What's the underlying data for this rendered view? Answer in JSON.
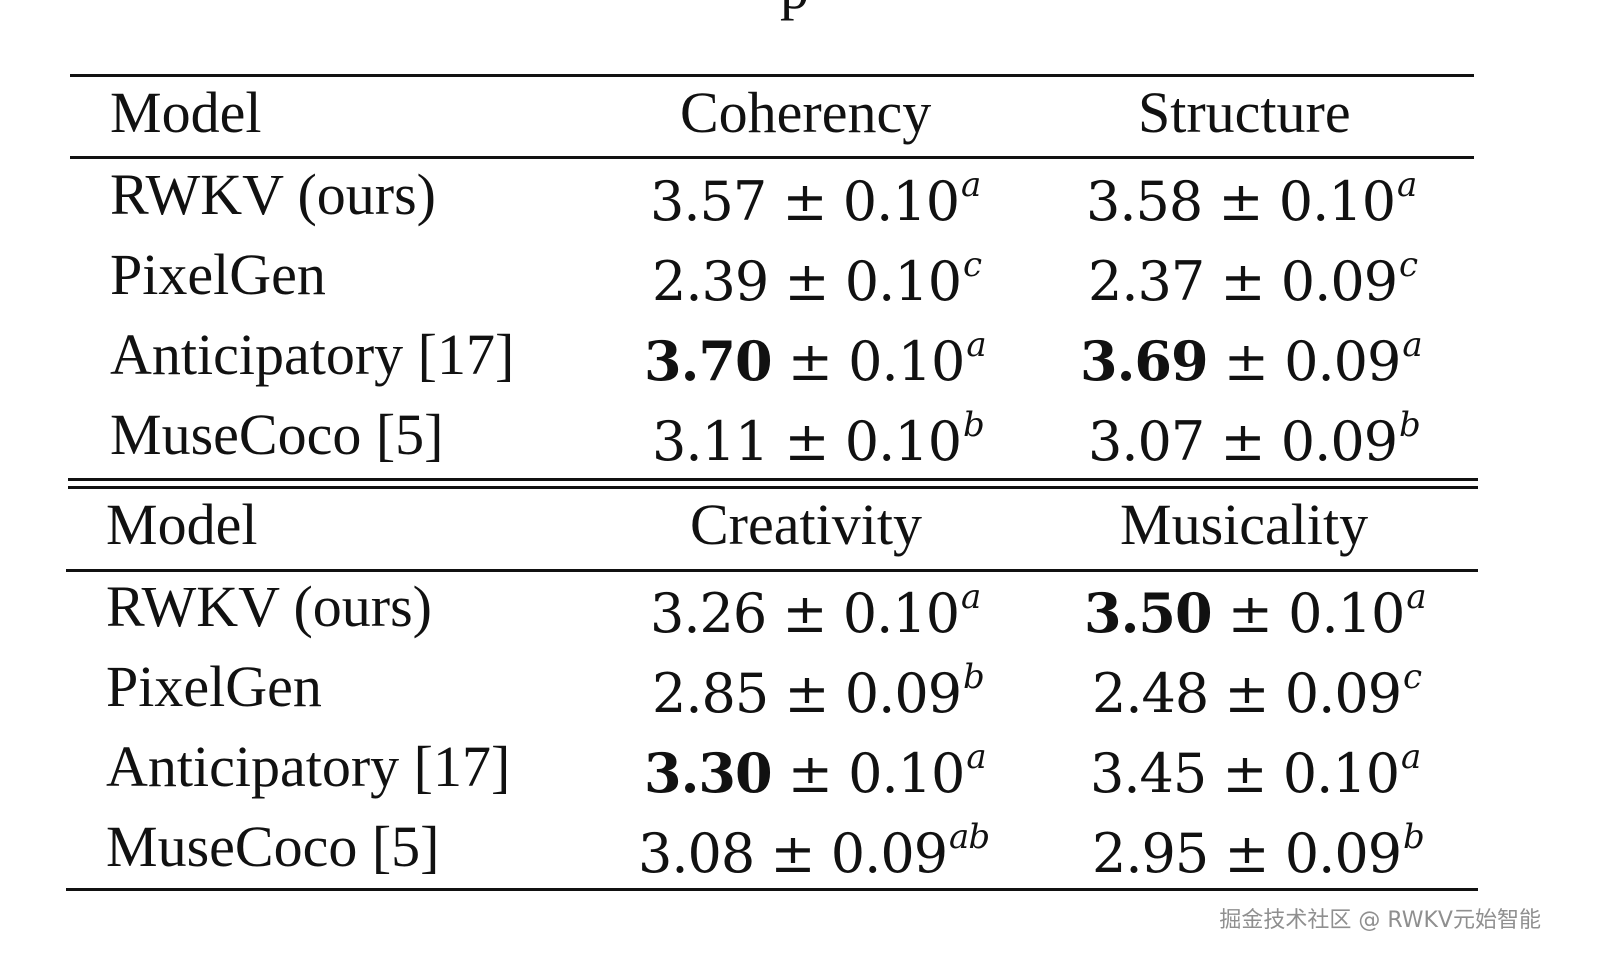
{
  "caption_fragment": "p",
  "table1": {
    "headers": [
      "Model",
      "Coherency",
      "Structure"
    ],
    "rows": [
      {
        "model": "RWKV (ours)",
        "a_main": "3.57 ± 0.10",
        "a_sup": "a",
        "b_main": "3.58 ± 0.10",
        "b_sup": "a"
      },
      {
        "model": "PixelGen",
        "a_main": "2.39 ± 0.10",
        "a_sup": "c",
        "b_main": "2.37 ± 0.09",
        "b_sup": "c"
      },
      {
        "model": "Anticipatory [17]",
        "a_bold": "3.70",
        "a_rest": " ± 0.10",
        "a_sup": "a",
        "b_bold": "3.69",
        "b_rest": " ± 0.09",
        "b_sup": "a"
      },
      {
        "model": "MuseCoco [5]",
        "a_main": "3.11 ± 0.10",
        "a_sup": "b",
        "b_main": "3.07 ± 0.09",
        "b_sup": "b"
      }
    ]
  },
  "table2": {
    "headers": [
      "Model",
      "Creativity",
      "Musicality"
    ],
    "rows": [
      {
        "model": "RWKV (ours)",
        "a_main": "3.26 ± 0.10",
        "a_sup": "a",
        "b_bold": "3.50",
        "b_rest": " ± 0.10",
        "b_sup": "a"
      },
      {
        "model": "PixelGen",
        "a_main": "2.85 ± 0.09",
        "a_sup": "b",
        "b_main": "2.48 ± 0.09",
        "b_sup": "c"
      },
      {
        "model": "Anticipatory [17]",
        "a_bold": "3.30",
        "a_rest": " ± 0.10",
        "a_sup": "a",
        "b_main": "3.45 ± 0.10",
        "b_sup": "a"
      },
      {
        "model": "MuseCoco [5]",
        "a_main": "3.08 ± 0.09",
        "a_sup": "ab",
        "b_main": "2.95 ± 0.09",
        "b_sup": "b"
      }
    ]
  },
  "watermark": "掘金技术社区 @ RWKV元始智能"
}
